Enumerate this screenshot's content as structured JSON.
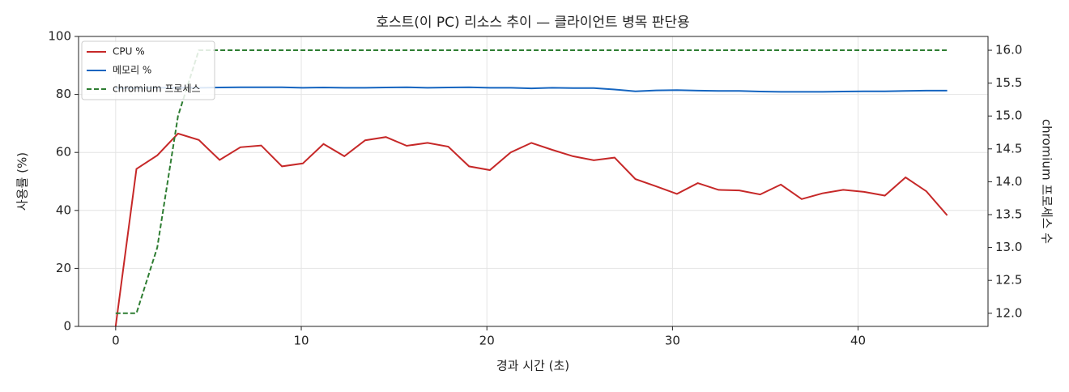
{
  "chart_data": {
    "type": "line",
    "title": "호스트(이 PC) 리소스 추이 — 클라이언트 병목 판단용",
    "x_label": "경과 시간 (초)",
    "y_label": "사용률 (%)",
    "y2_label": "chromium 프로세스 수",
    "x": [
      0,
      1.12,
      2.24,
      3.36,
      4.48,
      5.6,
      6.72,
      7.84,
      8.96,
      10.08,
      11.2,
      12.32,
      13.44,
      14.56,
      15.68,
      16.8,
      17.92,
      19.04,
      20.16,
      21.28,
      22.4,
      23.52,
      24.64,
      25.76,
      26.88,
      28,
      29.12,
      30.24,
      31.36,
      32.48,
      33.6,
      34.72,
      35.84,
      36.96,
      38.08,
      39.2,
      40.32,
      41.44,
      42.56,
      43.68,
      44.8
    ],
    "series": [
      {
        "name": "CPU %",
        "color": "#c62828",
        "dash": false,
        "values": [
          0,
          54.3,
          59,
          66.5,
          64.3,
          57.4,
          61.8,
          62.4,
          55.2,
          56.2,
          62.9,
          58.7,
          64.2,
          65.3,
          62.3,
          63.3,
          62,
          55.2,
          53.9,
          60,
          63.3,
          60.9,
          58.7,
          57.3,
          58.2,
          50.8,
          48.3,
          45.7,
          49.4,
          47.1,
          46.9,
          45.5,
          48.9,
          43.9,
          45.9,
          47.1,
          46.4,
          45.1,
          51.4,
          46.6,
          38.3
        ]
      },
      {
        "name": "메모리 %",
        "color": "#1565c0",
        "dash": false,
        "values": [
          82.2,
          82.2,
          82.3,
          82.3,
          82.3,
          82.4,
          82.5,
          82.5,
          82.5,
          82.3,
          82.4,
          82.3,
          82.3,
          82.4,
          82.5,
          82.3,
          82.4,
          82.5,
          82.3,
          82.3,
          82.1,
          82.3,
          82.2,
          82.2,
          81.7,
          81.1,
          81.4,
          81.5,
          81.3,
          81.2,
          81.2,
          81.0,
          80.9,
          80.9,
          80.9,
          81.0,
          81.1,
          81.1,
          81.2,
          81.3,
          81.3
        ]
      },
      {
        "name": "chromium 프로세스",
        "color": "#2e7d32",
        "dash": true,
        "axis": "y2",
        "values": [
          12,
          12,
          13,
          15,
          16,
          16,
          16,
          16,
          16,
          16,
          16,
          16,
          16,
          16,
          16,
          16,
          16,
          16,
          16,
          16,
          16,
          16,
          16,
          16,
          16,
          16,
          16,
          16,
          16,
          16,
          16,
          16,
          16,
          16,
          16,
          16,
          16,
          16,
          16,
          16,
          16
        ]
      }
    ],
    "xlim": [
      -2,
      47
    ],
    "xticks": [
      0,
      10,
      20,
      30,
      40
    ],
    "ylim": [
      0,
      100
    ],
    "yticks": [
      0,
      20,
      40,
      60,
      80,
      100
    ],
    "y2lim": [
      11.8,
      16.21
    ],
    "y2ticks": [
      {
        "value": 12,
        "label": "12.0"
      },
      {
        "value": 12.5,
        "label": "12.5"
      },
      {
        "value": 13,
        "label": "13.0"
      },
      {
        "value": 13.5,
        "label": "13.5"
      },
      {
        "value": 14,
        "label": "14.0"
      },
      {
        "value": 14.5,
        "label": "14.5"
      },
      {
        "value": 15,
        "label": "15.0"
      },
      {
        "value": 15.5,
        "label": "15.5"
      },
      {
        "value": 16,
        "label": "16.0"
      }
    ],
    "grid": true,
    "legend": "upper-left"
  }
}
